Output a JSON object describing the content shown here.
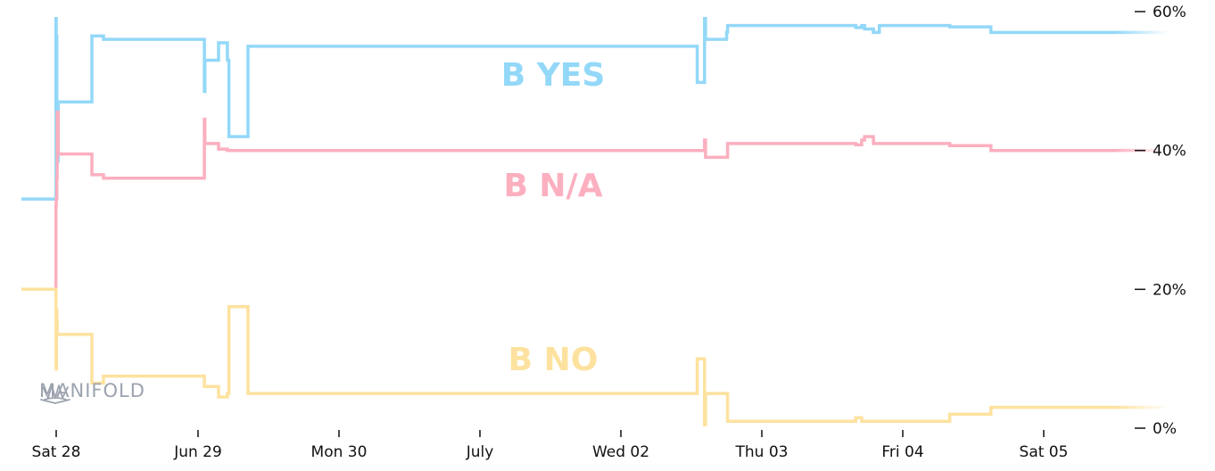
{
  "chart_data": {
    "type": "line",
    "title": "",
    "xlabel": "",
    "ylabel": "",
    "ylim": [
      0,
      60
    ],
    "x_ticks": [
      "Sat 28",
      "Jun 29",
      "Mon 30",
      "July",
      "Wed 02",
      "Thu 03",
      "Fri 04",
      "Sat 05"
    ],
    "y_ticks": [
      "0%",
      "20%",
      "40%",
      "60%"
    ],
    "y_tick_values": [
      0,
      20,
      40,
      60
    ],
    "grid": false,
    "step": true,
    "series": [
      {
        "name": "B YES",
        "color": "#93d8f8",
        "points": [
          [
            "Jun 27 23:54",
            33
          ],
          [
            "Jun 27 23:57",
            59
          ],
          [
            "Jun 28 00:00",
            49
          ],
          [
            "Jun 28 00:03",
            56.5
          ],
          [
            "Jun 28 00:06",
            38
          ],
          [
            "Jun 28 00:10",
            46
          ],
          [
            "Jun 28 00:13",
            38.5
          ],
          [
            "Jun 28 00:20",
            47
          ],
          [
            "Jun 28 06:00",
            47
          ],
          [
            "Jun 28 06:02",
            56.5
          ],
          [
            "Jun 28 08:00",
            56
          ],
          [
            "Jun 29 01:00",
            56
          ],
          [
            "Jun 29 01:05",
            48.5
          ],
          [
            "Jun 29 01:10",
            53
          ],
          [
            "Jun 29 03:30",
            55.5
          ],
          [
            "Jun 29 05:00",
            53
          ],
          [
            "Jun 29 05:15",
            42
          ],
          [
            "Jun 29 08:30",
            55
          ],
          [
            "Jul 02 13:00",
            49.8
          ],
          [
            "Jul 02 14:15",
            59
          ],
          [
            "Jul 02 14:25",
            56
          ],
          [
            "Jul 02 18:00",
            57
          ],
          [
            "Jul 02 18:10",
            58
          ],
          [
            "Jul 03 16:00",
            57.7
          ],
          [
            "Jul 03 17:00",
            58
          ],
          [
            "Jul 03 17:30",
            57.5
          ],
          [
            "Jul 03 19:00",
            57
          ],
          [
            "Jul 03 20:00",
            58
          ],
          [
            "Jul 04 08:00",
            57.8
          ],
          [
            "Jul 04 15:00",
            57
          ]
        ]
      },
      {
        "name": "B N/A",
        "color": "#fbafbf",
        "points": [
          [
            "Jun 27 23:54",
            20
          ],
          [
            "Jun 27 23:57",
            32
          ],
          [
            "Jun 28 00:00",
            33
          ],
          [
            "Jun 28 00:06",
            36
          ],
          [
            "Jun 28 00:10",
            45.5
          ],
          [
            "Jun 28 00:20",
            39.5
          ],
          [
            "Jun 28 06:00",
            39.5
          ],
          [
            "Jun 28 06:02",
            36.5
          ],
          [
            "Jun 28 08:00",
            36
          ],
          [
            "Jun 29 01:00",
            36
          ],
          [
            "Jun 29 01:05",
            44.5
          ],
          [
            "Jun 29 01:10",
            41
          ],
          [
            "Jun 29 03:30",
            40.2
          ],
          [
            "Jun 29 05:00",
            40
          ],
          [
            "Jul 02 14:15",
            41.5
          ],
          [
            "Jul 02 14:25",
            39
          ],
          [
            "Jul 02 18:10",
            41
          ],
          [
            "Jul 03 16:00",
            40.8
          ],
          [
            "Jul 03 17:00",
            41.5
          ],
          [
            "Jul 03 17:30",
            42
          ],
          [
            "Jul 03 19:00",
            41
          ],
          [
            "Jul 04 08:00",
            40.7
          ],
          [
            "Jul 04 15:00",
            40
          ]
        ]
      },
      {
        "name": "B NO",
        "color": "#fde29f",
        "points": [
          [
            "Jun 27 23:54",
            20
          ],
          [
            "Jun 27 23:57",
            9
          ],
          [
            "Jun 28 00:00",
            8.5
          ],
          [
            "Jun 28 00:03",
            17
          ],
          [
            "Jun 28 00:06",
            15.5
          ],
          [
            "Jun 28 00:10",
            13.5
          ],
          [
            "Jun 28 06:00",
            13.5
          ],
          [
            "Jun 28 06:02",
            6.5
          ],
          [
            "Jun 28 08:00",
            7.5
          ],
          [
            "Jun 29 01:00",
            7.5
          ],
          [
            "Jun 29 01:05",
            6
          ],
          [
            "Jun 29 03:30",
            4.5
          ],
          [
            "Jun 29 05:00",
            5
          ],
          [
            "Jun 29 05:15",
            17.5
          ],
          [
            "Jun 29 08:30",
            5
          ],
          [
            "Jul 02 13:00",
            10
          ],
          [
            "Jul 02 14:15",
            0.5
          ],
          [
            "Jul 02 14:25",
            5
          ],
          [
            "Jul 02 18:10",
            1
          ],
          [
            "Jul 03 16:00",
            1.5
          ],
          [
            "Jul 03 17:00",
            1
          ],
          [
            "Jul 04 08:00",
            2
          ],
          [
            "Jul 04 15:00",
            3
          ]
        ]
      }
    ]
  },
  "watermark": {
    "text": "MANIFOLD",
    "icon": "manifold-crane-icon",
    "color": "#9ca3af"
  }
}
